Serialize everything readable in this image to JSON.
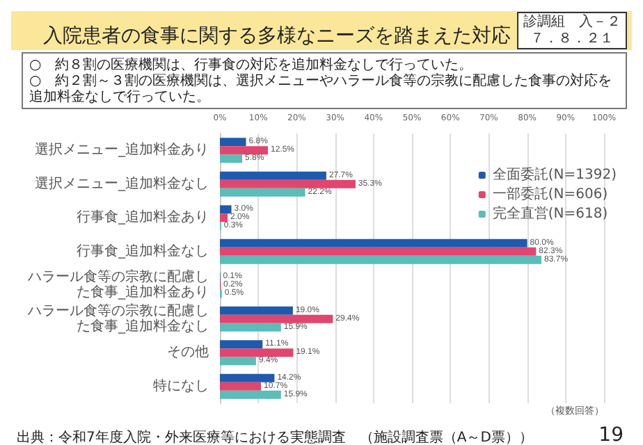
{
  "chart_data": {
    "type": "bar",
    "orientation": "horizontal",
    "title": "入院患者の食事に関する多様なニーズを踏まえた対応",
    "annotations": [
      "診調組　入－２",
      "７．８．２１",
      "○　約８割の医療機関は、行事食の対応を追加料金なしで行っていた。",
      "○　約２割～３割の医療機関は、選択メニューやハラール食等の宗教に配慮した食事の対応を追加料金なしで行っていた。",
      "（複数回答）",
      "出典：令和7年度入院・外来医療等における実態調査　（施設調査票（A～D票））",
      "19"
    ],
    "categories": [
      "選択メニュー_追加料金あり",
      "選択メニュー_追加料金なし",
      "行事食_追加料金あり",
      "行事食_追加料金なし",
      "ハラール食等の宗教に配慮した食事_追加料金あり",
      "ハラール食等の宗教に配慮した食事_追加料金なし",
      "その他",
      "特になし"
    ],
    "series": [
      {
        "name": "全面委託(N=1392)",
        "color": "#1f5aaf",
        "values": [
          6.8,
          27.7,
          3.0,
          80.0,
          0.1,
          19.0,
          11.1,
          14.2
        ],
        "value_labels": [
          "6.8%",
          "27.7%",
          "3.0%",
          "80.0%",
          "0.1%",
          "19.0%",
          "11.1%",
          "14.2%"
        ]
      },
      {
        "name": "一部委託(N=606)",
        "color": "#e0466e",
        "values": [
          12.5,
          35.3,
          2.0,
          82.3,
          0.2,
          29.4,
          19.1,
          10.7
        ],
        "value_labels": [
          "12.5%",
          "35.3%",
          "2.0%",
          "82.3%",
          "0.2%",
          "29.4%",
          "19.1%",
          "10.7%"
        ]
      },
      {
        "name": "完全直営(N=618)",
        "color": "#5bbcb8",
        "values": [
          5.8,
          22.2,
          0.3,
          83.7,
          0.5,
          15.9,
          9.4,
          15.9
        ],
        "value_labels": [
          "5.8%",
          "22.2%",
          "0.3%",
          "83.7%",
          "0.5%",
          "15.9%",
          "9.4%",
          "15.9%"
        ]
      }
    ],
    "xlim": [
      0,
      100
    ],
    "xticks": [
      {
        "value": 0,
        "label": "0%"
      },
      {
        "value": 10,
        "label": "10%"
      },
      {
        "value": 20,
        "label": "20%"
      },
      {
        "value": 30,
        "label": "30%"
      },
      {
        "value": 40,
        "label": "40%"
      },
      {
        "value": 50,
        "label": "50%"
      },
      {
        "value": 60,
        "label": "60%"
      },
      {
        "value": 70,
        "label": "70%"
      },
      {
        "value": 80,
        "label": "80%"
      },
      {
        "value": 90,
        "label": "90%"
      },
      {
        "value": 100,
        "label": "100%"
      }
    ],
    "grid": "x",
    "legend": "top right"
  }
}
